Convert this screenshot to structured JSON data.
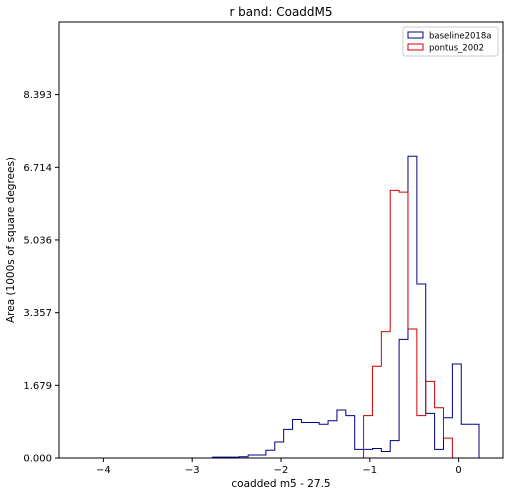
{
  "chart_data": {
    "type": "histogram",
    "title": "r band: CoaddM5",
    "xlabel": "coadded m5 - 27.5",
    "ylabel": "Area (1000s of square degrees)",
    "xlim": [
      -4.5,
      0.5
    ],
    "ylim": [
      0,
      10.07
    ],
    "xticks": [
      -4,
      -3,
      -2,
      -1,
      0
    ],
    "xtick_labels": [
      "−4",
      "−3",
      "−2",
      "−1",
      "0"
    ],
    "yticks": [
      0.0,
      1.679,
      3.357,
      5.036,
      6.714,
      8.393
    ],
    "ytick_labels": [
      "0.000",
      "1.679",
      "3.357",
      "5.036",
      "6.714",
      "8.393"
    ],
    "legend_position": "top-right",
    "series": [
      {
        "name": "baseline2018a",
        "color": "#00008b",
        "bins": [
          [
            -2.72,
            0.02
          ],
          [
            -2.62,
            0.02
          ],
          [
            -2.52,
            0.02
          ],
          [
            -2.42,
            0.03
          ],
          [
            -2.32,
            0.07
          ],
          [
            -2.22,
            0.07
          ],
          [
            -2.12,
            0.18
          ],
          [
            -2.02,
            0.37
          ],
          [
            -1.92,
            0.66
          ],
          [
            -1.82,
            0.89
          ],
          [
            -1.72,
            0.82
          ],
          [
            -1.62,
            0.82
          ],
          [
            -1.52,
            0.78
          ],
          [
            -1.42,
            0.86
          ],
          [
            -1.32,
            1.11
          ],
          [
            -1.22,
            0.98
          ],
          [
            -1.12,
            0.2
          ],
          [
            -1.02,
            0.2
          ],
          [
            -0.92,
            0.22
          ],
          [
            -0.82,
            0.15
          ],
          [
            -0.72,
            0.4
          ],
          [
            -0.62,
            2.74
          ],
          [
            -0.52,
            6.97
          ],
          [
            -0.42,
            4.02
          ],
          [
            -0.32,
            1.03
          ],
          [
            -0.22,
            0.2
          ],
          [
            -0.12,
            0.93
          ],
          [
            -0.02,
            2.17
          ],
          [
            0.08,
            0.78
          ],
          [
            0.18,
            0.78
          ]
        ]
      },
      {
        "name": "pontus_2002",
        "color": "#cc0000",
        "bins": [
          [
            -1.12,
            0.0
          ],
          [
            -1.02,
            0.98
          ],
          [
            -0.92,
            2.12
          ],
          [
            -0.82,
            2.92
          ],
          [
            -0.72,
            6.18
          ],
          [
            -0.62,
            6.14
          ],
          [
            -0.52,
            2.98
          ],
          [
            -0.42,
            0.98
          ],
          [
            -0.32,
            1.77
          ],
          [
            -0.22,
            1.16
          ],
          [
            -0.12,
            0.46
          ],
          [
            -0.02,
            0.0
          ]
        ]
      }
    ]
  }
}
